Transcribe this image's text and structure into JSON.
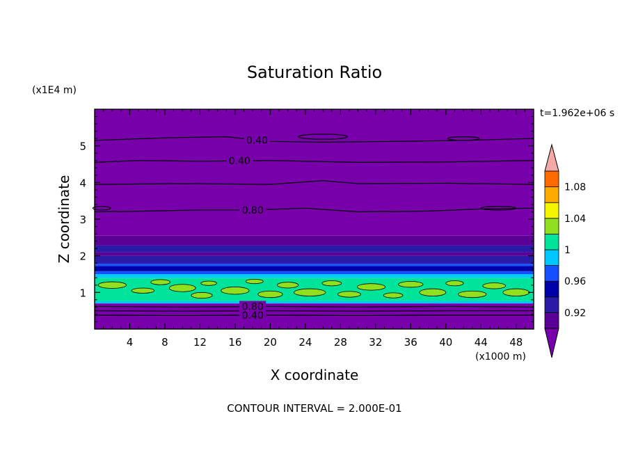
{
  "chart_data": {
    "type": "heatmap",
    "title": "Saturation Ratio",
    "xlabel": "X coordinate",
    "ylabel": "Z coordinate",
    "x_unit": "(x1000 m)",
    "y_unit": "(x1E4 m)",
    "time_label": "t=1.962e+06 s",
    "footer": "CONTOUR INTERVAL = 2.000E-01",
    "xlim": [
      0,
      50
    ],
    "ylim": [
      0,
      6
    ],
    "x_ticks": [
      "4",
      "8",
      "12",
      "16",
      "20",
      "24",
      "28",
      "32",
      "36",
      "40",
      "44",
      "48"
    ],
    "x_tick_values": [
      4,
      8,
      12,
      16,
      20,
      24,
      28,
      32,
      36,
      40,
      44,
      48
    ],
    "y_ticks": [
      "1",
      "2",
      "3",
      "4",
      "5"
    ],
    "y_tick_values": [
      1,
      2,
      3,
      4,
      5
    ],
    "colorbar": {
      "labels": [
        "0.92",
        "0.96",
        "1",
        "1.04",
        "1.08"
      ],
      "label_values": [
        0.92,
        0.96,
        1.0,
        1.04,
        1.08
      ],
      "levels": [
        0.9,
        0.92,
        0.94,
        0.96,
        0.98,
        1.0,
        1.02,
        1.04,
        1.06,
        1.08,
        1.1
      ],
      "colors": [
        "#5a0096",
        "#2a1aa8",
        "#0000a8",
        "#1450ff",
        "#00c8ff",
        "#00e39a",
        "#90e020",
        "#f5f500",
        "#ffaa00",
        "#ff6a00",
        "#ff2020",
        "#f4a8a8"
      ],
      "below_color": "#7800aa",
      "above_color": "#f4a8a8"
    },
    "bands": [
      {
        "z0": 0.0,
        "z1": 0.7,
        "color": "#7800aa"
      },
      {
        "z0": 0.7,
        "z1": 0.76,
        "color": "#00c8ff"
      },
      {
        "z0": 0.76,
        "z1": 1.4,
        "color": "#00e39a"
      },
      {
        "z0": 1.4,
        "z1": 1.5,
        "color": "#00c8ff"
      },
      {
        "z0": 1.5,
        "z1": 1.58,
        "color": "#1450ff"
      },
      {
        "z0": 1.58,
        "z1": 1.72,
        "color": "#0000a8"
      },
      {
        "z0": 1.72,
        "z1": 1.78,
        "color": "#1450ff"
      },
      {
        "z0": 1.78,
        "z1": 2.0,
        "color": "#2a1aa8"
      },
      {
        "z0": 2.0,
        "z1": 2.1,
        "color": "#5a0096"
      },
      {
        "z0": 2.1,
        "z1": 2.28,
        "color": "#2a1aa8"
      },
      {
        "z0": 2.28,
        "z1": 2.55,
        "color": "#5a0096"
      },
      {
        "z0": 2.55,
        "z1": 6.0,
        "color": "#7800aa"
      }
    ],
    "patch_color": "#90e020",
    "patches": [
      {
        "x": 2.0,
        "z": 1.2,
        "rx": 1.6,
        "rz": 0.09
      },
      {
        "x": 5.5,
        "z": 1.05,
        "rx": 1.3,
        "rz": 0.07
      },
      {
        "x": 7.5,
        "z": 1.28,
        "rx": 1.1,
        "rz": 0.07
      },
      {
        "x": 10.0,
        "z": 1.12,
        "rx": 1.5,
        "rz": 0.1
      },
      {
        "x": 12.2,
        "z": 0.92,
        "rx": 1.2,
        "rz": 0.08
      },
      {
        "x": 13.0,
        "z": 1.25,
        "rx": 0.9,
        "rz": 0.06
      },
      {
        "x": 16.0,
        "z": 1.05,
        "rx": 1.6,
        "rz": 0.1
      },
      {
        "x": 18.2,
        "z": 1.3,
        "rx": 1.0,
        "rz": 0.06
      },
      {
        "x": 20.0,
        "z": 0.95,
        "rx": 1.4,
        "rz": 0.09
      },
      {
        "x": 22.0,
        "z": 1.2,
        "rx": 1.2,
        "rz": 0.08
      },
      {
        "x": 24.5,
        "z": 1.0,
        "rx": 1.8,
        "rz": 0.1
      },
      {
        "x": 27.0,
        "z": 1.25,
        "rx": 1.1,
        "rz": 0.07
      },
      {
        "x": 29.0,
        "z": 0.95,
        "rx": 1.3,
        "rz": 0.08
      },
      {
        "x": 31.5,
        "z": 1.15,
        "rx": 1.6,
        "rz": 0.09
      },
      {
        "x": 34.0,
        "z": 0.92,
        "rx": 1.1,
        "rz": 0.07
      },
      {
        "x": 36.0,
        "z": 1.22,
        "rx": 1.4,
        "rz": 0.08
      },
      {
        "x": 38.5,
        "z": 1.0,
        "rx": 1.5,
        "rz": 0.1
      },
      {
        "x": 41.0,
        "z": 1.25,
        "rx": 1.0,
        "rz": 0.07
      },
      {
        "x": 43.0,
        "z": 0.95,
        "rx": 1.6,
        "rz": 0.09
      },
      {
        "x": 45.5,
        "z": 1.18,
        "rx": 1.3,
        "rz": 0.08
      },
      {
        "x": 48.0,
        "z": 1.0,
        "rx": 1.5,
        "rz": 0.1
      }
    ],
    "contours": [
      {
        "level": "0.40",
        "label_x": 18.5,
        "points": [
          [
            0,
            5.15
          ],
          [
            8,
            5.22
          ],
          [
            15,
            5.25
          ],
          [
            20,
            5.12
          ],
          [
            26,
            5.1
          ],
          [
            34,
            5.12
          ],
          [
            42,
            5.15
          ],
          [
            50,
            5.2
          ]
        ]
      },
      {
        "level": "0.40",
        "label_x": 16.5,
        "points": [
          [
            0,
            4.55
          ],
          [
            5,
            4.6
          ],
          [
            12,
            4.58
          ],
          [
            20,
            4.6
          ],
          [
            30,
            4.55
          ],
          [
            40,
            4.56
          ],
          [
            50,
            4.6
          ]
        ]
      },
      {
        "level": "",
        "label_x": null,
        "points": [
          [
            0,
            3.95
          ],
          [
            10,
            3.97
          ],
          [
            20,
            3.95
          ],
          [
            26,
            4.05
          ],
          [
            30,
            3.97
          ],
          [
            40,
            3.98
          ],
          [
            50,
            3.95
          ]
        ]
      },
      {
        "level": "0.80",
        "label_x": 18.0,
        "points": [
          [
            0,
            3.2
          ],
          [
            6,
            3.22
          ],
          [
            12,
            3.25
          ],
          [
            18,
            3.25
          ],
          [
            24,
            3.3
          ],
          [
            30,
            3.2
          ],
          [
            38,
            3.22
          ],
          [
            44,
            3.28
          ],
          [
            50,
            3.3
          ]
        ]
      },
      {
        "level": "0.80",
        "label_x": 18.0,
        "points": [
          [
            0,
            0.62
          ],
          [
            10,
            0.6
          ],
          [
            20,
            0.62
          ],
          [
            30,
            0.6
          ],
          [
            40,
            0.62
          ],
          [
            50,
            0.6
          ]
        ]
      },
      {
        "level": "",
        "label_x": null,
        "points": [
          [
            0,
            0.5
          ],
          [
            10,
            0.49
          ],
          [
            20,
            0.5
          ],
          [
            30,
            0.49
          ],
          [
            40,
            0.5
          ],
          [
            50,
            0.5
          ]
        ]
      },
      {
        "level": "0.40",
        "label_x": 18.0,
        "points": [
          [
            0,
            0.38
          ],
          [
            10,
            0.37
          ],
          [
            20,
            0.38
          ],
          [
            30,
            0.37
          ],
          [
            40,
            0.38
          ],
          [
            50,
            0.38
          ]
        ]
      }
    ],
    "islands": [
      {
        "x": 26.0,
        "z": 5.25,
        "rx": 2.8,
        "rz": 0.07
      },
      {
        "x": 42.0,
        "z": 5.2,
        "rx": 1.8,
        "rz": 0.05
      },
      {
        "x": 46.0,
        "z": 3.3,
        "rx": 2.0,
        "rz": 0.05
      },
      {
        "x": 0.8,
        "z": 3.3,
        "rx": 1.0,
        "rz": 0.05
      }
    ]
  }
}
